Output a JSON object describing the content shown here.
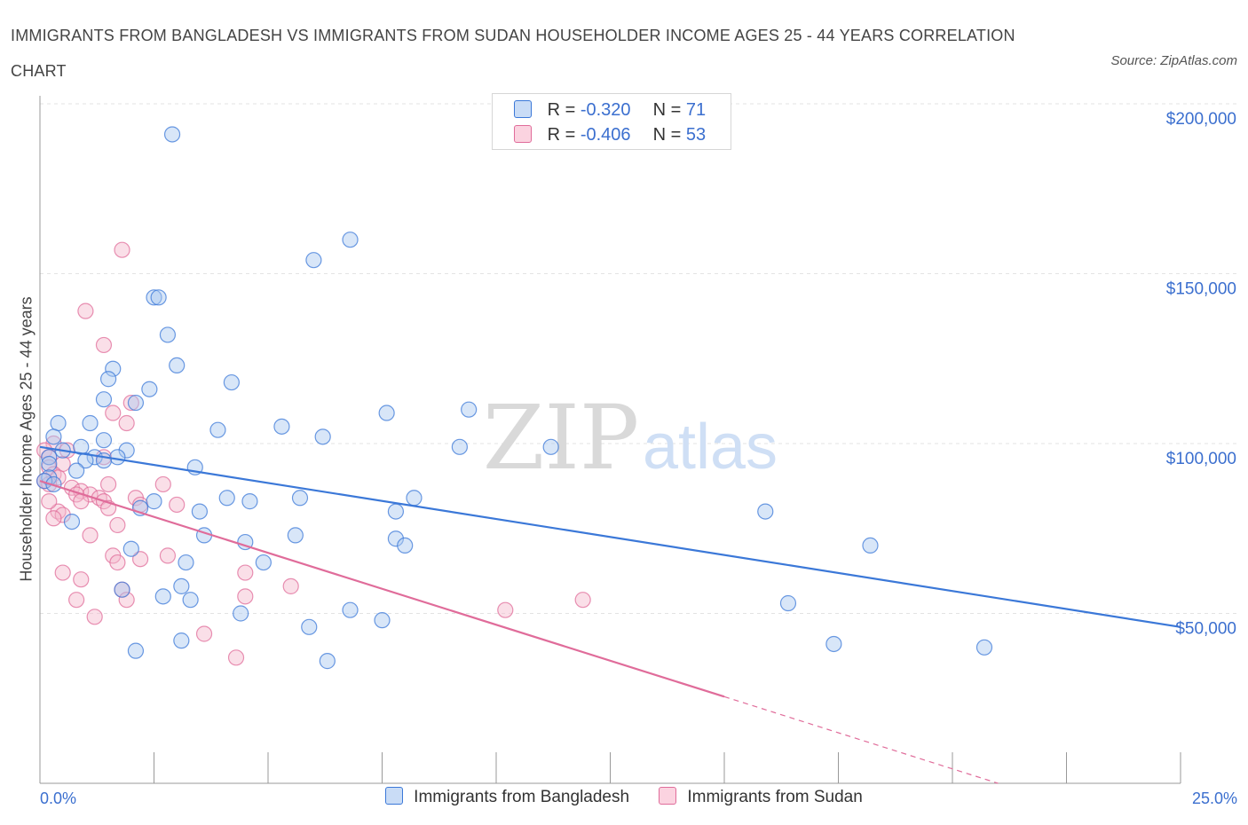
{
  "header": {
    "title": "IMMIGRANTS FROM BANGLADESH VS IMMIGRANTS FROM SUDAN HOUSEHOLDER INCOME AGES 25 - 44 YEARS CORRELATION CHART",
    "source": "Source: ZipAtlas.com"
  },
  "watermark": {
    "zip": "ZIP",
    "atlas": "atlas"
  },
  "stats": [
    {
      "r_label": "R =",
      "r_value": "-0.320",
      "n_label": "N =",
      "n_value": "71",
      "color": "#a9c7f0"
    },
    {
      "r_label": "R =",
      "r_value": "-0.406",
      "n_label": "N =",
      "n_value": "53",
      "color": "#f5b8cc"
    }
  ],
  "legend": {
    "bangladesh": "Immigrants from Bangladesh",
    "sudan": "Immigrants from Sudan"
  },
  "chart_data": {
    "type": "scatter",
    "title": "IMMIGRANTS FROM BANGLADESH VS IMMIGRANTS FROM SUDAN HOUSEHOLDER INCOME AGES 25 - 44 YEARS CORRELATION CHART",
    "xlabel": "",
    "ylabel": "Householder Income Ages 25 - 44 years",
    "xlim": [
      0,
      25
    ],
    "ylim": [
      0,
      200000
    ],
    "x_tick_labels": [
      "0.0%",
      "25.0%"
    ],
    "y_ticks": [
      50000,
      100000,
      150000,
      200000
    ],
    "y_tick_labels": [
      "$50,000",
      "$100,000",
      "$150,000",
      "$200,000"
    ],
    "grid": true,
    "legend_position": "bottom",
    "colors": {
      "bangladesh": "#3b78d8",
      "bangladesh_fill": "#a9c7f0",
      "sudan": "#e06c9a",
      "sudan_fill": "#f5b8cc",
      "tick": "#3b6fcf"
    },
    "series": [
      {
        "name": "Immigrants from Bangladesh",
        "trend": {
          "x": [
            0,
            25
          ],
          "y": [
            99000,
            46000
          ]
        },
        "points": [
          [
            2.9,
            191000
          ],
          [
            6.8,
            160000
          ],
          [
            6.0,
            154000
          ],
          [
            2.5,
            143000
          ],
          [
            2.6,
            143000
          ],
          [
            2.8,
            132000
          ],
          [
            3.0,
            123000
          ],
          [
            1.6,
            122000
          ],
          [
            1.5,
            119000
          ],
          [
            4.2,
            118000
          ],
          [
            1.4,
            113000
          ],
          [
            2.1,
            112000
          ],
          [
            2.4,
            116000
          ],
          [
            7.6,
            109000
          ],
          [
            9.4,
            110000
          ],
          [
            0.4,
            106000
          ],
          [
            1.1,
            106000
          ],
          [
            5.3,
            105000
          ],
          [
            3.9,
            104000
          ],
          [
            6.2,
            102000
          ],
          [
            0.3,
            102000
          ],
          [
            0.5,
            98000
          ],
          [
            1.4,
            101000
          ],
          [
            0.9,
            99000
          ],
          [
            1.9,
            98000
          ],
          [
            9.2,
            99000
          ],
          [
            11.2,
            99000
          ],
          [
            0.2,
            96000
          ],
          [
            1.2,
            96000
          ],
          [
            1.7,
            96000
          ],
          [
            1.4,
            95000
          ],
          [
            1.0,
            95000
          ],
          [
            0.2,
            94000
          ],
          [
            3.4,
            93000
          ],
          [
            0.8,
            92000
          ],
          [
            0.2,
            90000
          ],
          [
            0.1,
            89000
          ],
          [
            0.3,
            88000
          ],
          [
            8.2,
            84000
          ],
          [
            4.1,
            84000
          ],
          [
            5.7,
            84000
          ],
          [
            4.6,
            83000
          ],
          [
            2.5,
            83000
          ],
          [
            2.2,
            81000
          ],
          [
            3.5,
            80000
          ],
          [
            7.8,
            80000
          ],
          [
            15.9,
            80000
          ],
          [
            0.7,
            77000
          ],
          [
            3.6,
            73000
          ],
          [
            5.6,
            73000
          ],
          [
            4.5,
            71000
          ],
          [
            7.8,
            72000
          ],
          [
            8.0,
            70000
          ],
          [
            18.2,
            70000
          ],
          [
            2.0,
            69000
          ],
          [
            3.2,
            65000
          ],
          [
            4.9,
            65000
          ],
          [
            1.8,
            57000
          ],
          [
            3.1,
            58000
          ],
          [
            2.7,
            55000
          ],
          [
            3.3,
            54000
          ],
          [
            16.4,
            53000
          ],
          [
            6.8,
            51000
          ],
          [
            4.4,
            50000
          ],
          [
            7.5,
            48000
          ],
          [
            5.9,
            46000
          ],
          [
            3.1,
            42000
          ],
          [
            17.4,
            41000
          ],
          [
            20.7,
            40000
          ],
          [
            2.1,
            39000
          ],
          [
            6.3,
            36000
          ]
        ]
      },
      {
        "name": "Immigrants from Sudan",
        "trend": {
          "x": [
            0,
            15
          ],
          "y": [
            89000,
            25500
          ]
        },
        "dashed_extension": {
          "x": [
            15,
            21
          ],
          "y": [
            25500,
            0
          ]
        },
        "points": [
          [
            1.8,
            157000
          ],
          [
            1.0,
            139000
          ],
          [
            1.4,
            129000
          ],
          [
            2.0,
            112000
          ],
          [
            1.6,
            109000
          ],
          [
            1.9,
            106000
          ],
          [
            0.3,
            100000
          ],
          [
            0.6,
            98000
          ],
          [
            0.1,
            98000
          ],
          [
            0.2,
            96000
          ],
          [
            1.4,
            96000
          ],
          [
            0.5,
            94000
          ],
          [
            0.2,
            93000
          ],
          [
            0.3,
            91000
          ],
          [
            0.4,
            90000
          ],
          [
            0.1,
            89000
          ],
          [
            0.2,
            88000
          ],
          [
            1.5,
            88000
          ],
          [
            2.7,
            88000
          ],
          [
            0.7,
            87000
          ],
          [
            0.9,
            86000
          ],
          [
            1.1,
            85000
          ],
          [
            0.8,
            85000
          ],
          [
            1.3,
            84000
          ],
          [
            2.1,
            84000
          ],
          [
            0.9,
            83000
          ],
          [
            1.4,
            83000
          ],
          [
            2.2,
            82000
          ],
          [
            3.0,
            82000
          ],
          [
            1.5,
            81000
          ],
          [
            0.4,
            80000
          ],
          [
            0.5,
            79000
          ],
          [
            0.3,
            78000
          ],
          [
            1.7,
            76000
          ],
          [
            1.1,
            73000
          ],
          [
            2.8,
            67000
          ],
          [
            1.6,
            67000
          ],
          [
            2.2,
            66000
          ],
          [
            1.7,
            65000
          ],
          [
            0.5,
            62000
          ],
          [
            4.5,
            62000
          ],
          [
            0.9,
            60000
          ],
          [
            5.5,
            58000
          ],
          [
            1.8,
            57000
          ],
          [
            4.5,
            55000
          ],
          [
            0.8,
            54000
          ],
          [
            1.9,
            54000
          ],
          [
            11.9,
            54000
          ],
          [
            10.2,
            51000
          ],
          [
            1.2,
            49000
          ],
          [
            3.6,
            44000
          ],
          [
            4.3,
            37000
          ],
          [
            0.2,
            83000
          ]
        ]
      }
    ]
  }
}
